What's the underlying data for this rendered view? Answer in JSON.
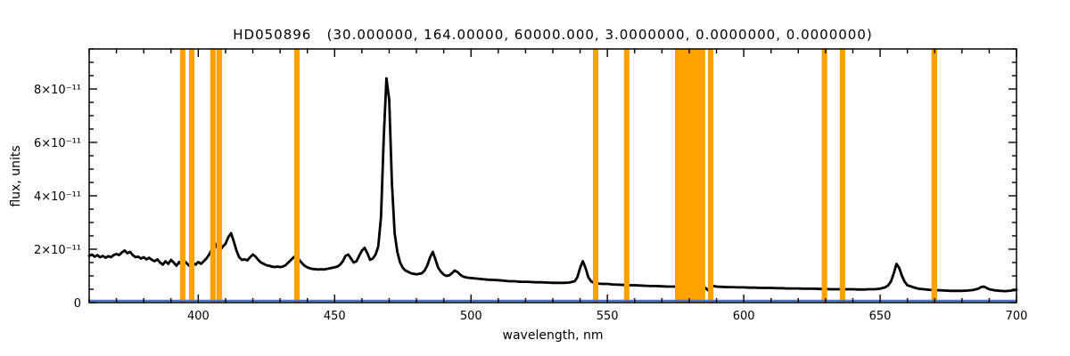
{
  "chart_data": {
    "type": "line",
    "title": "HD050896   (30.000000, 164.00000, 60000.000, 3.0000000, 0.0000000, 0.0000000)",
    "xlabel": "wavelength, nm",
    "ylabel": "flux, units",
    "xlim": [
      360,
      700
    ],
    "ylim": [
      0,
      9.5
    ],
    "flux_scale": 1e-11,
    "x_major_ticks": [
      400,
      450,
      500,
      550,
      600,
      650,
      700
    ],
    "x_tick_labels": [
      "400",
      "450",
      "500",
      "550",
      "600",
      "650",
      "700"
    ],
    "x_minor_step": 10,
    "y_major_ticks": [
      0,
      2,
      4,
      6,
      8
    ],
    "y_tick_labels": [
      "0",
      "2×10⁻¹¹",
      "4×10⁻¹¹",
      "6×10⁻¹¹",
      "8×10⁻¹¹"
    ],
    "y_minor_step": 0.5,
    "grid": false,
    "legend": false,
    "colors": {
      "spectrum": "#000000",
      "bands": "#FFA200",
      "baseline": "#4477CC",
      "axis": "#000000",
      "background": "#FFFFFF"
    },
    "bands": [
      [
        393.3,
        395.3
      ],
      [
        396.6,
        398.6
      ],
      [
        404.4,
        406.4
      ],
      [
        406.7,
        408.7
      ],
      [
        435.2,
        437.2
      ],
      [
        544.7,
        546.7
      ],
      [
        556.1,
        558.1
      ],
      [
        574.8,
        585.9
      ],
      [
        586.9,
        588.9
      ],
      [
        628.6,
        630.6
      ],
      [
        635.2,
        637.2
      ],
      [
        668.8,
        670.9
      ]
    ],
    "series": [
      {
        "name": "spectrum",
        "color_key": "spectrum",
        "width": 2.8,
        "points": [
          [
            360,
            1.75
          ],
          [
            361,
            1.8
          ],
          [
            362,
            1.72
          ],
          [
            363,
            1.78
          ],
          [
            364,
            1.7
          ],
          [
            365,
            1.75
          ],
          [
            366,
            1.68
          ],
          [
            367,
            1.74
          ],
          [
            368,
            1.7
          ],
          [
            369,
            1.78
          ],
          [
            370,
            1.82
          ],
          [
            371,
            1.78
          ],
          [
            372,
            1.88
          ],
          [
            373,
            1.95
          ],
          [
            374,
            1.85
          ],
          [
            375,
            1.9
          ],
          [
            376,
            1.78
          ],
          [
            377,
            1.7
          ],
          [
            378,
            1.72
          ],
          [
            379,
            1.65
          ],
          [
            380,
            1.7
          ],
          [
            381,
            1.62
          ],
          [
            382,
            1.68
          ],
          [
            383,
            1.6
          ],
          [
            384,
            1.55
          ],
          [
            385,
            1.62
          ],
          [
            386,
            1.5
          ],
          [
            387,
            1.42
          ],
          [
            388,
            1.55
          ],
          [
            389,
            1.45
          ],
          [
            390,
            1.6
          ],
          [
            391,
            1.5
          ],
          [
            392,
            1.38
          ],
          [
            393,
            1.52
          ],
          [
            394,
            1.42
          ],
          [
            395,
            1.55
          ],
          [
            396,
            1.45
          ],
          [
            397,
            1.35
          ],
          [
            398,
            1.5
          ],
          [
            399,
            1.42
          ],
          [
            400,
            1.52
          ],
          [
            401,
            1.45
          ],
          [
            402,
            1.55
          ],
          [
            403,
            1.65
          ],
          [
            404,
            1.8
          ],
          [
            405,
            2.0
          ],
          [
            406,
            2.25
          ],
          [
            407,
            2.05
          ],
          [
            408,
            1.95
          ],
          [
            409,
            2.1
          ],
          [
            410,
            2.2
          ],
          [
            411,
            2.45
          ],
          [
            412,
            2.6
          ],
          [
            413,
            2.3
          ],
          [
            414,
            1.95
          ],
          [
            415,
            1.7
          ],
          [
            416,
            1.6
          ],
          [
            417,
            1.62
          ],
          [
            418,
            1.58
          ],
          [
            419,
            1.7
          ],
          [
            420,
            1.8
          ],
          [
            421,
            1.72
          ],
          [
            422,
            1.6
          ],
          [
            423,
            1.5
          ],
          [
            424,
            1.45
          ],
          [
            425,
            1.4
          ],
          [
            426,
            1.38
          ],
          [
            427,
            1.35
          ],
          [
            428,
            1.33
          ],
          [
            429,
            1.35
          ],
          [
            430,
            1.33
          ],
          [
            431,
            1.35
          ],
          [
            432,
            1.4
          ],
          [
            433,
            1.5
          ],
          [
            434,
            1.6
          ],
          [
            435,
            1.7
          ],
          [
            436,
            1.75
          ],
          [
            437,
            1.6
          ],
          [
            438,
            1.48
          ],
          [
            439,
            1.38
          ],
          [
            440,
            1.32
          ],
          [
            441,
            1.28
          ],
          [
            442,
            1.26
          ],
          [
            443,
            1.25
          ],
          [
            444,
            1.24
          ],
          [
            445,
            1.25
          ],
          [
            446,
            1.24
          ],
          [
            447,
            1.26
          ],
          [
            448,
            1.28
          ],
          [
            449,
            1.3
          ],
          [
            450,
            1.32
          ],
          [
            451,
            1.35
          ],
          [
            452,
            1.42
          ],
          [
            453,
            1.55
          ],
          [
            454,
            1.75
          ],
          [
            455,
            1.8
          ],
          [
            456,
            1.65
          ],
          [
            457,
            1.5
          ],
          [
            458,
            1.55
          ],
          [
            459,
            1.75
          ],
          [
            460,
            1.95
          ],
          [
            461,
            2.05
          ],
          [
            462,
            1.85
          ],
          [
            463,
            1.6
          ],
          [
            464,
            1.65
          ],
          [
            465,
            1.8
          ],
          [
            466,
            2.1
          ],
          [
            467,
            3.2
          ],
          [
            468,
            6.2
          ],
          [
            469,
            8.4
          ],
          [
            470,
            7.6
          ],
          [
            471,
            4.5
          ],
          [
            472,
            2.6
          ],
          [
            473,
            1.9
          ],
          [
            474,
            1.5
          ],
          [
            475,
            1.3
          ],
          [
            476,
            1.2
          ],
          [
            477,
            1.15
          ],
          [
            478,
            1.1
          ],
          [
            479,
            1.08
          ],
          [
            480,
            1.06
          ],
          [
            481,
            1.08
          ],
          [
            482,
            1.1
          ],
          [
            483,
            1.2
          ],
          [
            484,
            1.4
          ],
          [
            485,
            1.7
          ],
          [
            486,
            1.9
          ],
          [
            487,
            1.6
          ],
          [
            488,
            1.3
          ],
          [
            489,
            1.15
          ],
          [
            490,
            1.05
          ],
          [
            491,
            1.0
          ],
          [
            492,
            1.02
          ],
          [
            493,
            1.1
          ],
          [
            494,
            1.2
          ],
          [
            495,
            1.15
          ],
          [
            496,
            1.05
          ],
          [
            497,
            0.98
          ],
          [
            498,
            0.95
          ],
          [
            499,
            0.93
          ],
          [
            500,
            0.92
          ],
          [
            502,
            0.9
          ],
          [
            504,
            0.88
          ],
          [
            506,
            0.86
          ],
          [
            508,
            0.85
          ],
          [
            510,
            0.84
          ],
          [
            512,
            0.82
          ],
          [
            514,
            0.8
          ],
          [
            516,
            0.8
          ],
          [
            518,
            0.78
          ],
          [
            520,
            0.78
          ],
          [
            522,
            0.77
          ],
          [
            524,
            0.76
          ],
          [
            526,
            0.76
          ],
          [
            528,
            0.75
          ],
          [
            530,
            0.74
          ],
          [
            532,
            0.74
          ],
          [
            534,
            0.74
          ],
          [
            536,
            0.75
          ],
          [
            538,
            0.8
          ],
          [
            539,
            0.95
          ],
          [
            540,
            1.3
          ],
          [
            541,
            1.55
          ],
          [
            542,
            1.3
          ],
          [
            543,
            0.95
          ],
          [
            544,
            0.8
          ],
          [
            545,
            0.74
          ],
          [
            546,
            0.72
          ],
          [
            548,
            0.7
          ],
          [
            550,
            0.7
          ],
          [
            552,
            0.68
          ],
          [
            554,
            0.67
          ],
          [
            556,
            0.66
          ],
          [
            558,
            0.65
          ],
          [
            560,
            0.65
          ],
          [
            562,
            0.64
          ],
          [
            564,
            0.63
          ],
          [
            566,
            0.62
          ],
          [
            568,
            0.62
          ],
          [
            570,
            0.61
          ],
          [
            572,
            0.6
          ],
          [
            574,
            0.6
          ],
          [
            576,
            0.6
          ],
          [
            578,
            0.6
          ],
          [
            580,
            0.6
          ],
          [
            582,
            0.59
          ],
          [
            584,
            0.58
          ],
          [
            586,
            0.55
          ],
          [
            587,
            0.45
          ],
          [
            588,
            0.55
          ],
          [
            589,
            0.62
          ],
          [
            590,
            0.6
          ],
          [
            592,
            0.59
          ],
          [
            594,
            0.58
          ],
          [
            596,
            0.58
          ],
          [
            598,
            0.57
          ],
          [
            600,
            0.57
          ],
          [
            602,
            0.56
          ],
          [
            604,
            0.56
          ],
          [
            606,
            0.55
          ],
          [
            608,
            0.55
          ],
          [
            610,
            0.55
          ],
          [
            612,
            0.54
          ],
          [
            614,
            0.54
          ],
          [
            616,
            0.53
          ],
          [
            618,
            0.53
          ],
          [
            620,
            0.53
          ],
          [
            622,
            0.52
          ],
          [
            624,
            0.52
          ],
          [
            626,
            0.52
          ],
          [
            628,
            0.51
          ],
          [
            630,
            0.51
          ],
          [
            632,
            0.5
          ],
          [
            634,
            0.5
          ],
          [
            636,
            0.5
          ],
          [
            638,
            0.5
          ],
          [
            640,
            0.5
          ],
          [
            642,
            0.49
          ],
          [
            644,
            0.49
          ],
          [
            646,
            0.5
          ],
          [
            648,
            0.5
          ],
          [
            650,
            0.52
          ],
          [
            652,
            0.58
          ],
          [
            653,
            0.65
          ],
          [
            654,
            0.8
          ],
          [
            655,
            1.1
          ],
          [
            656,
            1.45
          ],
          [
            657,
            1.3
          ],
          [
            658,
            1.0
          ],
          [
            659,
            0.78
          ],
          [
            660,
            0.65
          ],
          [
            662,
            0.58
          ],
          [
            664,
            0.52
          ],
          [
            666,
            0.5
          ],
          [
            668,
            0.48
          ],
          [
            670,
            0.47
          ],
          [
            672,
            0.46
          ],
          [
            674,
            0.45
          ],
          [
            676,
            0.44
          ],
          [
            678,
            0.44
          ],
          [
            680,
            0.44
          ],
          [
            682,
            0.45
          ],
          [
            684,
            0.47
          ],
          [
            686,
            0.52
          ],
          [
            687,
            0.58
          ],
          [
            688,
            0.6
          ],
          [
            689,
            0.55
          ],
          [
            690,
            0.5
          ],
          [
            692,
            0.46
          ],
          [
            694,
            0.44
          ],
          [
            696,
            0.43
          ],
          [
            698,
            0.45
          ],
          [
            700,
            0.48
          ]
        ]
      },
      {
        "name": "baseline",
        "color_key": "baseline",
        "width": 2.4,
        "points": [
          [
            360,
            0.07
          ],
          [
            700,
            0.07
          ]
        ]
      }
    ]
  }
}
